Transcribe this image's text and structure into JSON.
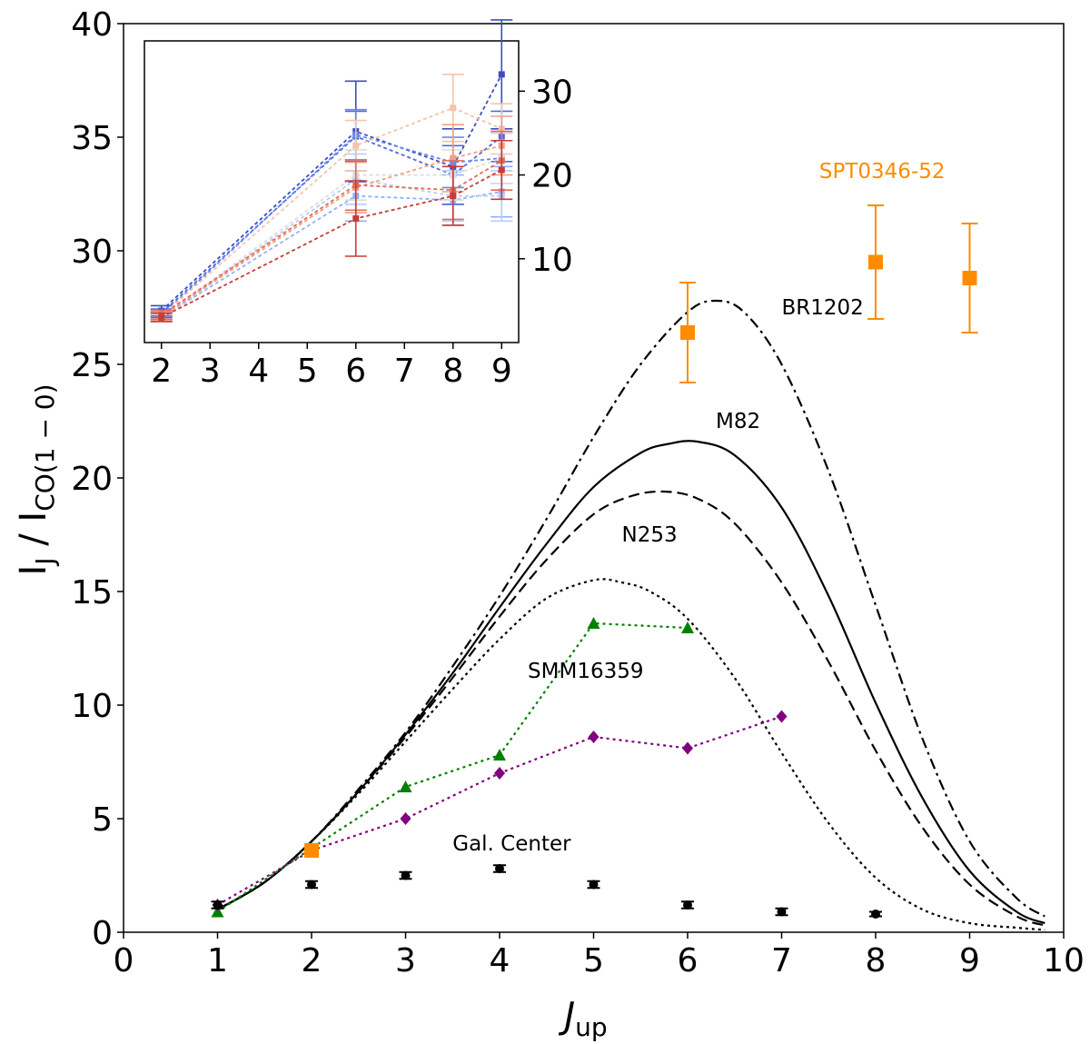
{
  "chart_data": [
    {
      "type": "line",
      "xlabel": "J",
      "xlabel_sub": "up",
      "ylabel": "I",
      "ylabel_sub1": "J",
      "ylabel_mid": " / I",
      "ylabel_sub2": "CO(1 − 0)",
      "xlim": [
        0,
        10
      ],
      "ylim": [
        0,
        40
      ],
      "x_ticks": [
        "0",
        "1",
        "2",
        "3",
        "4",
        "5",
        "6",
        "7",
        "8",
        "9",
        "10"
      ],
      "y_ticks": [
        "0",
        "5",
        "10",
        "15",
        "20",
        "25",
        "30",
        "35",
        "40"
      ],
      "grid": false,
      "curves": [
        {
          "label": "BR1202",
          "style": "dashdot",
          "color": "#000000",
          "x": [
            1,
            1.5,
            2,
            2.5,
            3,
            3.5,
            4,
            4.5,
            5,
            5.5,
            6,
            6.3,
            6.6,
            7,
            7.5,
            8,
            8.5,
            9,
            9.5,
            9.8
          ],
          "y": [
            1,
            2.2,
            4,
            6.3,
            8.8,
            11.7,
            14.8,
            18.2,
            21.8,
            25.0,
            27.3,
            27.8,
            27.3,
            25.0,
            20.3,
            14.4,
            8.5,
            4.0,
            1.5,
            0.7
          ]
        },
        {
          "label": "M82",
          "style": "solid",
          "color": "#000000",
          "x": [
            1,
            1.5,
            2,
            2.5,
            3,
            3.5,
            4,
            4.5,
            5,
            5.5,
            5.8,
            6.1,
            6.5,
            7,
            7.5,
            8,
            8.5,
            9,
            9.5,
            9.8
          ],
          "y": [
            1,
            2.2,
            4,
            6.2,
            8.7,
            11.4,
            14.3,
            17.1,
            19.6,
            21.1,
            21.5,
            21.6,
            21.0,
            18.7,
            14.8,
            10.1,
            5.9,
            2.7,
            0.9,
            0.4
          ]
        },
        {
          "label": "",
          "style": "dashed",
          "color": "#000000",
          "x": [
            1,
            1.5,
            2,
            2.5,
            3,
            3.5,
            4,
            4.5,
            5,
            5.4,
            5.75,
            6.1,
            6.5,
            7,
            7.5,
            8,
            8.5,
            9,
            9.5,
            9.8
          ],
          "y": [
            1,
            2.2,
            4,
            6.2,
            8.6,
            11.2,
            13.9,
            16.4,
            18.4,
            19.2,
            19.4,
            19.1,
            18.0,
            15.4,
            11.9,
            8.0,
            4.6,
            2.1,
            0.7,
            0.3
          ]
        },
        {
          "label": "N253",
          "style": "dotted",
          "color": "#000000",
          "x": [
            1,
            1.5,
            2,
            2.5,
            3,
            3.5,
            4,
            4.5,
            5,
            5.3,
            5.6,
            6,
            6.5,
            7,
            7.5,
            8,
            8.5,
            9,
            9.5,
            9.8
          ],
          "y": [
            1,
            2.2,
            4,
            6.1,
            8.4,
            10.7,
            12.9,
            14.7,
            15.5,
            15.4,
            15.0,
            13.8,
            11.2,
            7.9,
            4.8,
            2.4,
            1.0,
            0.4,
            0.2,
            0.1
          ]
        }
      ],
      "series": [
        {
          "label": "SMM16359",
          "color": "#008000",
          "marker": "triangle",
          "line": "dotted",
          "x": [
            1,
            2,
            3,
            4,
            5,
            6
          ],
          "y": [
            0.9,
            3.7,
            6.4,
            7.8,
            13.6,
            13.4
          ]
        },
        {
          "label": "",
          "color": "#800080",
          "marker": "diamond",
          "line": "dotted",
          "x": [
            1,
            2,
            3,
            4,
            5,
            6,
            7
          ],
          "y": [
            1.2,
            3.6,
            5.0,
            7.0,
            8.6,
            8.1,
            9.5
          ]
        },
        {
          "label": "Gal. Center",
          "color": "#000000",
          "marker": "circle",
          "line": "none",
          "x": [
            1,
            2,
            3,
            4,
            5,
            6,
            7,
            8
          ],
          "y": [
            1.2,
            2.1,
            2.5,
            2.8,
            2.1,
            1.2,
            0.9,
            0.8
          ],
          "err": [
            0.15,
            0.15,
            0.15,
            0.15,
            0.15,
            0.15,
            0.15,
            0.1
          ]
        },
        {
          "label": "SPT0346-52",
          "color": "#ff8c00",
          "marker": "square",
          "line": "none",
          "x": [
            2,
            6,
            8,
            9
          ],
          "y": [
            3.6,
            26.4,
            29.5,
            28.8
          ],
          "err_lo": [
            0,
            2.2,
            2.5,
            2.4
          ],
          "err_hi": [
            0,
            2.2,
            2.5,
            2.4
          ]
        }
      ],
      "annotations": [
        {
          "text": "BR1202",
          "x": 7.0,
          "y": 27.2
        },
        {
          "text": "M82",
          "x": 6.3,
          "y": 22.2
        },
        {
          "text": "N253",
          "x": 5.3,
          "y": 17.2
        },
        {
          "text": "SMM16359",
          "x": 4.3,
          "y": 11.2
        },
        {
          "text": "Gal. Center",
          "x": 3.5,
          "y": 3.6
        },
        {
          "text": "SPT0346-52",
          "x": 7.4,
          "y": 33.2,
          "color": "#ff8c00"
        }
      ]
    },
    {
      "type": "line",
      "xlim": [
        1.65,
        9.35
      ],
      "ylim": [
        0,
        36
      ],
      "x_ticks": [
        "2",
        "3",
        "4",
        "5",
        "6",
        "7",
        "8",
        "9"
      ],
      "y_ticks": [
        "10",
        "20",
        "30"
      ],
      "y_axis_side": "right",
      "series": [
        {
          "color": "#3b4cc0",
          "x": [
            2,
            6,
            8,
            9
          ],
          "y": [
            3.8,
            25.2,
            21.0,
            32.0
          ],
          "err": [
            0.6,
            6.0,
            4.5,
            6.5
          ]
        },
        {
          "color": "#4f6bd9",
          "x": [
            2,
            6,
            8,
            9
          ],
          "y": [
            3.5,
            24.6,
            20.0,
            24.6
          ],
          "err": [
            0.5,
            3.0,
            3.5,
            3.0
          ]
        },
        {
          "color": "#6788ee",
          "x": [
            2,
            6,
            8,
            9
          ],
          "y": [
            3.2,
            24.8,
            21.5,
            22.0
          ],
          "err": [
            0.5,
            3.0,
            3.0,
            3.0
          ]
        },
        {
          "color": "#8fb1fe",
          "x": [
            2,
            6,
            8,
            9
          ],
          "y": [
            3.0,
            17.5,
            17.0,
            18.0
          ],
          "err": [
            0.4,
            3.0,
            3.0,
            3.0
          ]
        },
        {
          "color": "#b4cdfa",
          "x": [
            2,
            6,
            8,
            9
          ],
          "y": [
            2.9,
            19.5,
            17.5,
            17.5
          ],
          "err": [
            0.4,
            3.0,
            3.0,
            3.0
          ]
        },
        {
          "color": "#dddcdc",
          "x": [
            2,
            6,
            8,
            9
          ],
          "y": [
            3.0,
            20.0,
            20.0,
            22.0
          ],
          "err": [
            0.4,
            3.0,
            3.0,
            3.0
          ]
        },
        {
          "color": "#f5c4ac",
          "x": [
            2,
            6,
            8,
            9
          ],
          "y": [
            3.2,
            23.5,
            28.0,
            25.5
          ],
          "err": [
            0.5,
            3.0,
            4.0,
            3.0
          ]
        },
        {
          "color": "#f39f80",
          "x": [
            2,
            6,
            8,
            9
          ],
          "y": [
            3.1,
            18.5,
            22.0,
            23.5
          ],
          "err": [
            0.5,
            3.0,
            4.0,
            3.5
          ]
        },
        {
          "color": "#e36c55",
          "x": [
            2,
            6,
            8,
            9
          ],
          "y": [
            3.3,
            18.8,
            18.2,
            21.7
          ],
          "err": [
            0.5,
            3.0,
            3.5,
            3.5
          ]
        },
        {
          "color": "#c63c36",
          "x": [
            2,
            6,
            8,
            9
          ],
          "y": [
            3.0,
            14.8,
            17.5,
            20.6
          ],
          "err": [
            0.5,
            4.5,
            3.5,
            3.5
          ]
        }
      ]
    }
  ]
}
